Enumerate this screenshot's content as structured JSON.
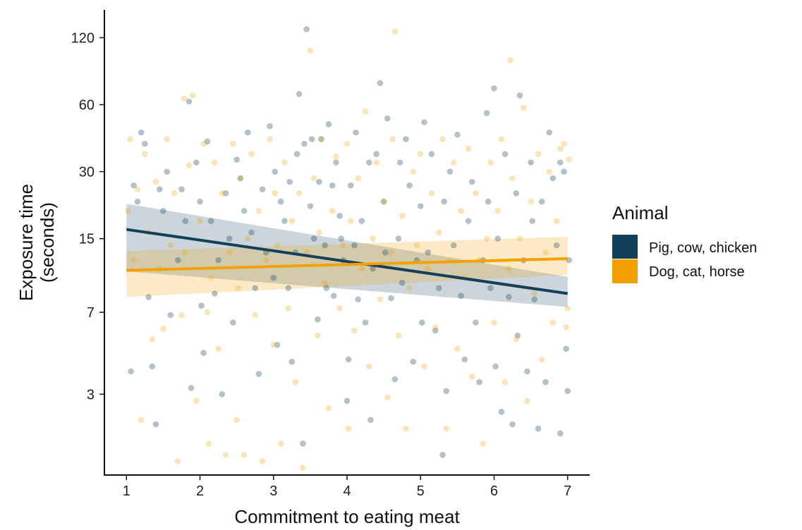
{
  "chart_data": {
    "type": "scatter",
    "xlabel": "Commitment to eating meat",
    "ylabel_line1": "Exposure time",
    "ylabel_line2": "(seconds)",
    "x_ticks": [
      1,
      2,
      3,
      4,
      5,
      6,
      7
    ],
    "y_ticks": [
      3,
      7,
      15,
      30,
      60,
      120
    ],
    "y_scale": "log",
    "xlim": [
      0.7,
      7.3
    ],
    "ylim": [
      1.3,
      160
    ],
    "legend_title": "Animal",
    "legend_position": "right",
    "grid": false,
    "series": [
      {
        "name": "Pig, cow, chicken",
        "color": "#12405a",
        "fit": {
          "x": [
            1,
            7
          ],
          "y": [
            16.5,
            8.5
          ]
        },
        "band": {
          "lower": [
            10.7,
            7.4
          ],
          "upper": [
            21.5,
            10.1
          ]
        },
        "points": [
          [
            1.06,
            3.8
          ],
          [
            1.1,
            26
          ],
          [
            1.15,
            22
          ],
          [
            1.2,
            45
          ],
          [
            1.25,
            40
          ],
          [
            1.3,
            8.2
          ],
          [
            1.35,
            4
          ],
          [
            1.4,
            2.2
          ],
          [
            1.45,
            25
          ],
          [
            1.5,
            20
          ],
          [
            1.55,
            30
          ],
          [
            1.6,
            6.8
          ],
          [
            1.7,
            12
          ],
          [
            1.75,
            25
          ],
          [
            1.8,
            18
          ],
          [
            1.85,
            62
          ],
          [
            1.88,
            3.2
          ],
          [
            1.95,
            33
          ],
          [
            2.0,
            22
          ],
          [
            2.02,
            7.5
          ],
          [
            2.05,
            4.6
          ],
          [
            2.1,
            41
          ],
          [
            2.15,
            18
          ],
          [
            2.2,
            8.5
          ],
          [
            2.25,
            12
          ],
          [
            2.3,
            3
          ],
          [
            2.35,
            24
          ],
          [
            2.4,
            15
          ],
          [
            2.45,
            6.3
          ],
          [
            2.5,
            34
          ],
          [
            2.55,
            28
          ],
          [
            2.6,
            20
          ],
          [
            2.65,
            45
          ],
          [
            2.7,
            16
          ],
          [
            2.75,
            9
          ],
          [
            2.8,
            3.7
          ],
          [
            2.85,
            25
          ],
          [
            2.9,
            13
          ],
          [
            2.95,
            48
          ],
          [
            3.0,
            10
          ],
          [
            3.02,
            30
          ],
          [
            3.05,
            5
          ],
          [
            3.1,
            22
          ],
          [
            3.15,
            18
          ],
          [
            3.2,
            9
          ],
          [
            3.22,
            27
          ],
          [
            3.25,
            4.2
          ],
          [
            3.3,
            13
          ],
          [
            3.32,
            36
          ],
          [
            3.35,
            67
          ],
          [
            3.4,
            1.8
          ],
          [
            3.42,
            40
          ],
          [
            3.45,
            131
          ],
          [
            3.5,
            21
          ],
          [
            3.52,
            42
          ],
          [
            3.55,
            15
          ],
          [
            3.6,
            6.5
          ],
          [
            3.62,
            27
          ],
          [
            3.65,
            42
          ],
          [
            3.7,
            14
          ],
          [
            3.72,
            9
          ],
          [
            3.75,
            49
          ],
          [
            3.8,
            26
          ],
          [
            3.82,
            8.3
          ],
          [
            3.85,
            33
          ],
          [
            3.9,
            19
          ],
          [
            3.92,
            15
          ],
          [
            3.95,
            12
          ],
          [
            4.0,
            2.8
          ],
          [
            4.02,
            4.3
          ],
          [
            4.05,
            26
          ],
          [
            4.1,
            14
          ],
          [
            4.12,
            45
          ],
          [
            4.15,
            8
          ],
          [
            4.2,
            18
          ],
          [
            4.25,
            6.3
          ],
          [
            4.3,
            33
          ],
          [
            4.32,
            2.3
          ],
          [
            4.35,
            11
          ],
          [
            4.4,
            36
          ],
          [
            4.45,
            75
          ],
          [
            4.5,
            22
          ],
          [
            4.52,
            13
          ],
          [
            4.55,
            52
          ],
          [
            4.6,
            8.1
          ],
          [
            4.65,
            3.5
          ],
          [
            4.7,
            15
          ],
          [
            4.72,
            33
          ],
          [
            4.75,
            9.5
          ],
          [
            4.8,
            42
          ],
          [
            4.85,
            26
          ],
          [
            4.9,
            4.2
          ],
          [
            4.95,
            12
          ],
          [
            5.0,
            21
          ],
          [
            5.02,
            6.3
          ],
          [
            5.05,
            50
          ],
          [
            5.1,
            13
          ],
          [
            5.15,
            36
          ],
          [
            5.2,
            5.8
          ],
          [
            5.25,
            9
          ],
          [
            5.3,
            1.6
          ],
          [
            5.32,
            22
          ],
          [
            5.35,
            3.1
          ],
          [
            5.4,
            30
          ],
          [
            5.45,
            14
          ],
          [
            5.5,
            44
          ],
          [
            5.55,
            8.3
          ],
          [
            5.6,
            4.3
          ],
          [
            5.65,
            18
          ],
          [
            5.7,
            27
          ],
          [
            5.75,
            6.3
          ],
          [
            5.8,
            3.4
          ],
          [
            5.85,
            12
          ],
          [
            5.9,
            55
          ],
          [
            5.92,
            22
          ],
          [
            5.95,
            9
          ],
          [
            6.0,
            71
          ],
          [
            6.02,
            4
          ],
          [
            6.05,
            15
          ],
          [
            6.1,
            2.5
          ],
          [
            6.15,
            36
          ],
          [
            6.2,
            8.2
          ],
          [
            6.25,
            2.2
          ],
          [
            6.3,
            24
          ],
          [
            6.32,
            5.5
          ],
          [
            6.35,
            66
          ],
          [
            6.4,
            12
          ],
          [
            6.45,
            3.8
          ],
          [
            6.5,
            33
          ],
          [
            6.52,
            18
          ],
          [
            6.55,
            8
          ],
          [
            6.6,
            2.1
          ],
          [
            6.65,
            22
          ],
          [
            6.7,
            3.4
          ],
          [
            6.75,
            45
          ],
          [
            6.8,
            28
          ],
          [
            6.85,
            14
          ],
          [
            6.9,
            2
          ],
          [
            6.95,
            30
          ],
          [
            6.98,
            4.8
          ],
          [
            7.0,
            3.1
          ],
          [
            7.02,
            12
          ],
          [
            6.9,
            33
          ]
        ]
      },
      {
        "name": "Dog, cat, horse",
        "color": "#f2a100",
        "fit": {
          "x": [
            1,
            7
          ],
          "y": [
            10.8,
            12.2
          ]
        },
        "band": {
          "lower": [
            8.2,
            10.3
          ],
          "upper": [
            13.2,
            15.3
          ]
        },
        "points": [
          [
            1.02,
            20
          ],
          [
            1.05,
            42
          ],
          [
            1.1,
            12
          ],
          [
            1.15,
            25
          ],
          [
            1.2,
            2.3
          ],
          [
            1.25,
            36
          ],
          [
            1.3,
            16
          ],
          [
            1.35,
            5.3
          ],
          [
            1.4,
            27
          ],
          [
            1.45,
            11
          ],
          [
            1.5,
            5.9
          ],
          [
            1.55,
            42
          ],
          [
            1.6,
            14
          ],
          [
            1.65,
            24
          ],
          [
            1.7,
            1.5
          ],
          [
            1.75,
            6.8
          ],
          [
            1.78,
            64
          ],
          [
            1.8,
            13
          ],
          [
            1.85,
            32
          ],
          [
            1.9,
            66
          ],
          [
            1.95,
            2.8
          ],
          [
            2.0,
            18
          ],
          [
            2.05,
            40
          ],
          [
            2.1,
            7
          ],
          [
            2.12,
            1.8
          ],
          [
            2.15,
            10
          ],
          [
            2.2,
            33
          ],
          [
            2.25,
            4.8
          ],
          [
            2.3,
            24
          ],
          [
            2.35,
            1.6
          ],
          [
            2.4,
            13
          ],
          [
            2.45,
            40
          ],
          [
            2.5,
            2.3
          ],
          [
            2.52,
            9
          ],
          [
            2.55,
            28
          ],
          [
            2.6,
            1.6
          ],
          [
            2.65,
            15
          ],
          [
            2.7,
            36
          ],
          [
            2.75,
            6.8
          ],
          [
            2.8,
            20
          ],
          [
            2.85,
            1.5
          ],
          [
            2.9,
            12
          ],
          [
            2.95,
            42
          ],
          [
            3.0,
            5
          ],
          [
            3.02,
            24
          ],
          [
            3.05,
            14
          ],
          [
            3.1,
            1.8
          ],
          [
            3.15,
            33
          ],
          [
            3.2,
            7.3
          ],
          [
            3.25,
            18
          ],
          [
            3.3,
            3.4
          ],
          [
            3.35,
            24
          ],
          [
            3.4,
            1.4
          ],
          [
            3.45,
            13
          ],
          [
            3.5,
            105
          ],
          [
            3.55,
            28
          ],
          [
            3.6,
            5.5
          ],
          [
            3.62,
            16
          ],
          [
            3.65,
            42
          ],
          [
            3.7,
            9.5
          ],
          [
            3.75,
            2.6
          ],
          [
            3.8,
            20
          ],
          [
            3.85,
            35
          ],
          [
            3.9,
            7.3
          ],
          [
            3.95,
            14
          ],
          [
            4.0,
            40
          ],
          [
            4.02,
            2.1
          ],
          [
            4.05,
            18
          ],
          [
            4.1,
            5.8
          ],
          [
            4.15,
            28
          ],
          [
            4.2,
            11
          ],
          [
            4.25,
            56
          ],
          [
            4.3,
            4
          ],
          [
            4.35,
            15
          ],
          [
            4.4,
            33
          ],
          [
            4.45,
            8
          ],
          [
            4.5,
            22
          ],
          [
            4.55,
            2.9
          ],
          [
            4.6,
            13
          ],
          [
            4.62,
            42
          ],
          [
            4.65,
            128
          ],
          [
            4.7,
            5.5
          ],
          [
            4.75,
            19
          ],
          [
            4.8,
            2.1
          ],
          [
            4.85,
            9
          ],
          [
            4.9,
            30
          ],
          [
            4.95,
            14
          ],
          [
            5.0,
            36
          ],
          [
            5.05,
            4
          ],
          [
            5.1,
            11
          ],
          [
            5.15,
            24
          ],
          [
            5.2,
            6
          ],
          [
            5.25,
            16
          ],
          [
            5.3,
            42
          ],
          [
            5.35,
            2.1
          ],
          [
            5.4,
            12
          ],
          [
            5.45,
            33
          ],
          [
            5.5,
            4.8
          ],
          [
            5.55,
            20
          ],
          [
            5.6,
            10
          ],
          [
            5.65,
            38
          ],
          [
            5.7,
            3.6
          ],
          [
            5.75,
            24
          ],
          [
            5.8,
            12
          ],
          [
            5.85,
            1.8
          ],
          [
            5.9,
            15
          ],
          [
            5.95,
            33
          ],
          [
            6.0,
            6.3
          ],
          [
            6.05,
            20
          ],
          [
            6.1,
            42
          ],
          [
            6.15,
            3.4
          ],
          [
            6.2,
            11
          ],
          [
            6.22,
            95
          ],
          [
            6.25,
            28
          ],
          [
            6.3,
            5.3
          ],
          [
            6.35,
            15
          ],
          [
            6.4,
            58
          ],
          [
            6.45,
            2.8
          ],
          [
            6.5,
            22
          ],
          [
            6.55,
            8.5
          ],
          [
            6.6,
            36
          ],
          [
            6.65,
            4.3
          ],
          [
            6.7,
            13
          ],
          [
            6.75,
            30
          ],
          [
            6.8,
            6.3
          ],
          [
            6.85,
            18
          ],
          [
            6.9,
            38
          ],
          [
            6.95,
            40
          ],
          [
            7.0,
            7.3
          ],
          [
            7.02,
            34
          ],
          [
            6.98,
            6
          ]
        ]
      }
    ]
  }
}
